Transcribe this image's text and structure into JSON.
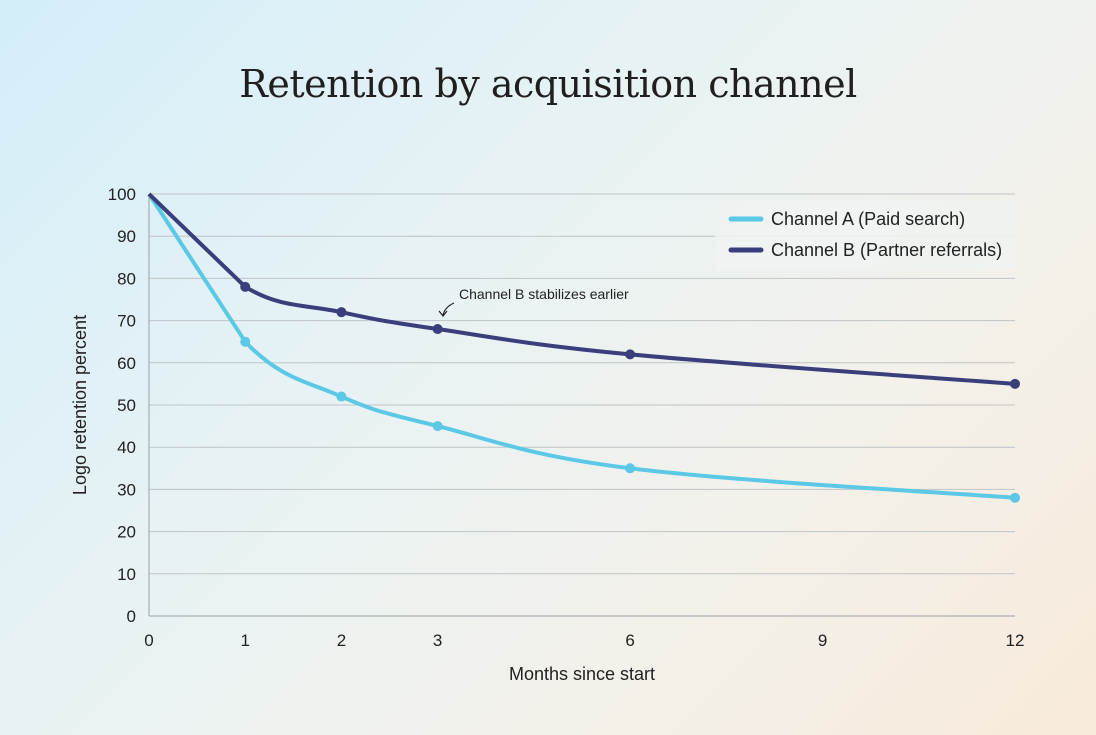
{
  "chart_data": {
    "type": "line",
    "title": "Retention by acquisition channel",
    "xlabel": "Months since start",
    "ylabel": "Logo retention percent",
    "x_ticks": [
      0,
      1,
      2,
      3,
      6,
      9,
      12
    ],
    "x_scale": "non-uniform (0–3 spaced one step per month, 3–12 spaced one step per 1.5 months)",
    "y_ticks": [
      0,
      10,
      20,
      30,
      40,
      50,
      60,
      70,
      80,
      90,
      100
    ],
    "ylim": [
      0,
      100
    ],
    "xlim": [
      0,
      12
    ],
    "grid": "horizontal",
    "legend_position": "top-right",
    "series": [
      {
        "name": "Channel A (Paid search)",
        "color": "#5bc8e6",
        "x": [
          0,
          1,
          2,
          3,
          6,
          12
        ],
        "y": [
          100,
          65,
          52,
          45,
          35,
          28
        ]
      },
      {
        "name": "Channel B (Partner referrals)",
        "color": "#3a3f7c",
        "x": [
          0,
          1,
          2,
          3,
          6,
          12
        ],
        "y": [
          100,
          78,
          72,
          68,
          62,
          55
        ]
      }
    ],
    "annotations": [
      {
        "text": "Channel B stabilizes earlier",
        "x": 3,
        "y": 70
      }
    ]
  }
}
